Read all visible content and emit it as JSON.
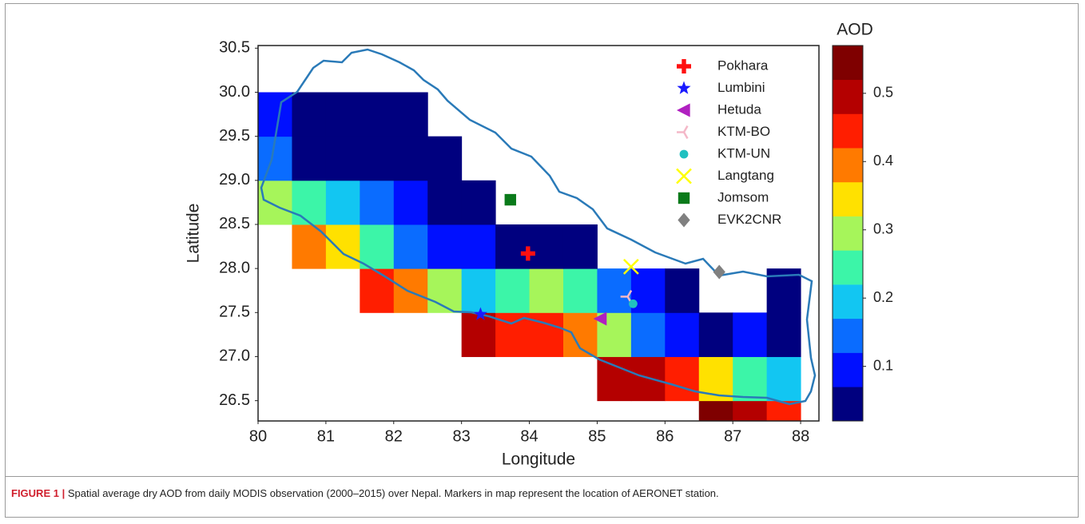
{
  "chart_data": {
    "type": "map",
    "xlabel": "Longitude",
    "ylabel": "Latitude",
    "xlim": [
      80,
      88.27
    ],
    "ylim": [
      26.27,
      30.53
    ],
    "xticks": [
      80,
      81,
      82,
      83,
      84,
      85,
      86,
      87,
      88
    ],
    "yticks": [
      26.5,
      {
        "value": 27.0,
        "label": "27.0"
      },
      27.5,
      {
        "value": 28.0,
        "label": "28.0"
      },
      28.5,
      {
        "value": 29.0,
        "label": "29.0"
      },
      29.5,
      {
        "value": 30.0,
        "label": "30.0"
      },
      30.5
    ],
    "lon_edges": [
      80,
      80.5,
      81,
      81.5,
      82,
      82.5,
      83,
      83.5,
      84,
      84.5,
      85,
      85.5,
      86,
      86.5,
      87,
      87.5,
      88
    ],
    "lat_edges": [
      26.0,
      26.5,
      27.0,
      27.5,
      28.0,
      28.5,
      29.0,
      29.5,
      30.0
    ],
    "values": [
      [
        null,
        null,
        null,
        null,
        null,
        null,
        null,
        null,
        null,
        null,
        null,
        null,
        null,
        0.55,
        0.48,
        0.45
      ],
      [
        null,
        null,
        null,
        null,
        null,
        null,
        null,
        null,
        null,
        null,
        0.48,
        0.5,
        0.45,
        0.35,
        0.25,
        0.2
      ],
      [
        null,
        null,
        null,
        null,
        null,
        null,
        0.48,
        0.45,
        0.42,
        0.38,
        0.3,
        0.15,
        0.1,
        0.05,
        0.08,
        0.05
      ],
      [
        null,
        null,
        null,
        0.45,
        0.38,
        0.3,
        0.2,
        0.22,
        0.28,
        0.25,
        0.15,
        0.08,
        0.05,
        null,
        null,
        0.05
      ],
      [
        null,
        0.4,
        0.35,
        0.25,
        0.15,
        0.1,
        0.08,
        0.05,
        0.05,
        0.05,
        null,
        null,
        null,
        null,
        null,
        null
      ],
      [
        0.3,
        0.25,
        0.2,
        0.12,
        0.08,
        0.05,
        0.05,
        null,
        null,
        null,
        null,
        null,
        null,
        null,
        null,
        null
      ],
      [
        0.15,
        0.05,
        0.05,
        0.05,
        0.05,
        0.05,
        null,
        null,
        null,
        null,
        null,
        null,
        null,
        null,
        null,
        null
      ],
      [
        0.1,
        0.05,
        0.05,
        0.05,
        0.05,
        null,
        null,
        null,
        null,
        null,
        null,
        null,
        null,
        null,
        null,
        null
      ]
    ],
    "colorbar": {
      "label": "AOD",
      "bounds": [
        0.02,
        0.07,
        0.12,
        0.17,
        0.22,
        0.27,
        0.32,
        0.37,
        0.42,
        0.47,
        0.52,
        0.57
      ],
      "colors": [
        "#00007f",
        "#0010ff",
        "#0a6cff",
        "#12c6f2",
        "#3cf5a8",
        "#a6f55a",
        "#ffe100",
        "#ff7a00",
        "#ff1e00",
        "#b40000",
        "#7f0000"
      ],
      "ticks": [
        0.1,
        0.2,
        0.3,
        0.4,
        0.5
      ]
    },
    "stations": [
      {
        "name": "Pokhara",
        "x": 83.98,
        "y": 28.17,
        "color": "#ff1010",
        "marker": "plus"
      },
      {
        "name": "Lumbini",
        "x": 83.28,
        "y": 27.48,
        "color": "#1a1aff",
        "marker": "star"
      },
      {
        "name": "Hetuda",
        "x": 85.05,
        "y": 27.43,
        "color": "#b020c0",
        "marker": "triangle-left"
      },
      {
        "name": "KTM-BO",
        "x": 85.45,
        "y": 27.68,
        "color": "#f4b8c8",
        "marker": "tri-left"
      },
      {
        "name": "KTM-UN",
        "x": 85.53,
        "y": 27.6,
        "color": "#20c0c0",
        "marker": "circle"
      },
      {
        "name": "Langtang",
        "x": 85.5,
        "y": 28.02,
        "color": "#ffff00",
        "marker": "x"
      },
      {
        "name": "Jomsom",
        "x": 83.72,
        "y": 28.78,
        "color": "#0a7a1a",
        "marker": "square"
      },
      {
        "name": "EVK2CNR",
        "x": 86.8,
        "y": 27.96,
        "color": "#808080",
        "marker": "diamond"
      }
    ]
  },
  "caption": {
    "label": "FIGURE 1 |",
    "text": "Spatial average dry AOD from daily MODIS observation (2000–2015) over Nepal. Markers in map represent the location of AERONET station."
  }
}
